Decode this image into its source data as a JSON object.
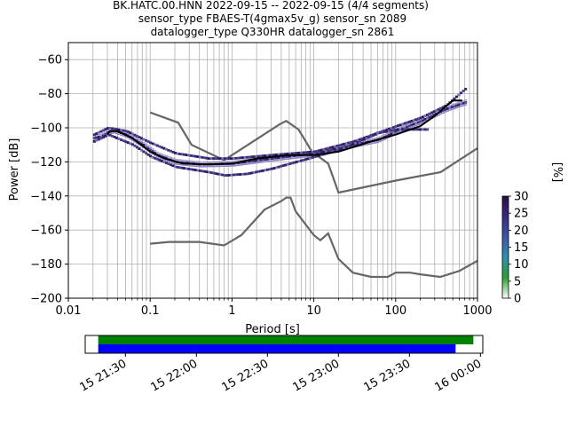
{
  "chart_data": [
    {
      "type": "heatmap",
      "title_lines": [
        "BK.HATC.00.HNN   2022-09-15 -- 2022-09-15  (4/4 segments)",
        "sensor_type FBAES-T(4gmax5v_g) sensor_sn 2089",
        "datalogger_type Q330HR datalogger_sn 2861"
      ],
      "xlabel": "Period [s]",
      "ylabel": "Power [dB]",
      "xscale": "log",
      "xlim": [
        0.01,
        1000
      ],
      "ylim": [
        -200,
        -50
      ],
      "x_ticks": [
        0.01,
        0.1,
        1,
        10,
        100,
        1000
      ],
      "x_tick_labels": [
        "0.01",
        "0.1",
        "1",
        "10",
        "100",
        "1000"
      ],
      "y_ticks": [
        -200,
        -180,
        -160,
        -140,
        -120,
        -100,
        -80,
        -60
      ],
      "y_tick_labels": [
        "−200",
        "−180",
        "−160",
        "−140",
        "−120",
        "−100",
        "−80",
        "−60"
      ],
      "grid": true,
      "noise_models": {
        "new_high_noise_model": [
          [
            0.1,
            -91
          ],
          [
            0.22,
            -97
          ],
          [
            0.32,
            -110
          ],
          [
            0.8,
            -119
          ],
          [
            3.8,
            -98
          ],
          [
            4.6,
            -96
          ],
          [
            6.5,
            -101
          ],
          [
            9.5,
            -114
          ],
          [
            15,
            -121
          ],
          [
            20,
            -138
          ],
          [
            100,
            -131
          ],
          [
            355,
            -126
          ],
          [
            1000,
            -112
          ]
        ],
        "new_low_noise_model": [
          [
            0.1,
            -168
          ],
          [
            0.17,
            -167
          ],
          [
            0.4,
            -167
          ],
          [
            0.8,
            -169
          ],
          [
            1.3,
            -163
          ],
          [
            2.5,
            -148
          ],
          [
            4,
            -143
          ],
          [
            4.6,
            -141
          ],
          [
            5.2,
            -141
          ],
          [
            6,
            -149
          ],
          [
            10,
            -163
          ],
          [
            12,
            -166
          ],
          [
            15,
            -162
          ],
          [
            20,
            -177
          ],
          [
            30,
            -185
          ],
          [
            50,
            -187.5
          ],
          [
            80,
            -187.5
          ],
          [
            100,
            -185
          ],
          [
            150,
            -185
          ],
          [
            200,
            -186
          ],
          [
            350,
            -187.5
          ],
          [
            600,
            -184
          ],
          [
            1000,
            -178
          ]
        ]
      },
      "psd_mean_line": [
        [
          0.03,
          -104
        ],
        [
          0.032,
          -102
        ],
        [
          0.04,
          -102
        ],
        [
          0.06,
          -106
        ],
        [
          0.1,
          -114
        ],
        [
          0.15,
          -118
        ],
        [
          0.25,
          -121
        ],
        [
          0.5,
          -121.5
        ],
        [
          1,
          -121
        ],
        [
          2,
          -118
        ],
        [
          5,
          -116
        ],
        [
          10,
          -116
        ],
        [
          20,
          -114
        ],
        [
          50,
          -108
        ],
        [
          100,
          -104
        ],
        [
          200,
          -99
        ],
        [
          300,
          -93
        ],
        [
          500,
          -84
        ],
        [
          650,
          -84
        ]
      ],
      "psd_density_traces": [
        {
          "name": "median",
          "points": [
            [
              0.02,
              -106
            ],
            [
              0.025,
              -105
            ],
            [
              0.03,
              -102.5
            ],
            [
              0.035,
              -101.5
            ],
            [
              0.05,
              -104
            ],
            [
              0.08,
              -110
            ],
            [
              0.12,
              -116
            ],
            [
              0.2,
              -120
            ],
            [
              0.4,
              -121.5
            ],
            [
              1,
              -121
            ],
            [
              3,
              -118
            ],
            [
              10,
              -115
            ],
            [
              30,
              -110
            ],
            [
              60,
              -107
            ],
            [
              110,
              -101
            ],
            [
              200,
              -96
            ],
            [
              400,
              -89
            ],
            [
              700,
              -85
            ]
          ]
        },
        {
          "name": "upper",
          "points": [
            [
              0.02,
              -104
            ],
            [
              0.03,
              -100
            ],
            [
              0.05,
              -102
            ],
            [
              0.1,
              -109
            ],
            [
              0.2,
              -115
            ],
            [
              0.5,
              -118
            ],
            [
              1,
              -118
            ],
            [
              3,
              -116
            ],
            [
              10,
              -114
            ],
            [
              30,
              -108
            ],
            [
              100,
              -99
            ],
            [
              200,
              -94
            ],
            [
              400,
              -87
            ],
            [
              700,
              -77
            ]
          ]
        },
        {
          "name": "lower",
          "points": [
            [
              0.02,
              -108
            ],
            [
              0.03,
              -104
            ],
            [
              0.06,
              -110
            ],
            [
              0.1,
              -117
            ],
            [
              0.2,
              -123
            ],
            [
              0.5,
              -126
            ],
            [
              0.8,
              -128
            ],
            [
              1.5,
              -127
            ],
            [
              3,
              -124
            ],
            [
              10,
              -117
            ],
            [
              20,
              -113
            ],
            [
              60,
              -103
            ],
            [
              100,
              -101
            ],
            [
              250,
              -101
            ]
          ]
        }
      ],
      "colorbar": {
        "label": "[%]",
        "min": 0,
        "max": 30,
        "ticks": [
          0,
          5,
          10,
          15,
          20,
          25,
          30
        ],
        "colormap": "pqlx",
        "stops": [
          "#ffffff",
          "#2f9e2f",
          "#2f8fb0",
          "#3b57a8",
          "#3a2a80",
          "#2b0f44"
        ]
      }
    },
    {
      "type": "timeline",
      "x_ticks": [
        "15 21:30",
        "15 22:00",
        "15 22:30",
        "15 23:00",
        "15 23:30",
        "16 00:00"
      ],
      "x_ticks_minutes": [
        90,
        120,
        150,
        180,
        210,
        240
      ],
      "xlim_minutes": [
        73,
        241
      ],
      "bars": [
        {
          "color": "#008000",
          "start_min": 78.5,
          "end_min": 237
        },
        {
          "color": "#0000ff",
          "start_min": 78.5,
          "end_min": 229.5
        }
      ]
    }
  ]
}
